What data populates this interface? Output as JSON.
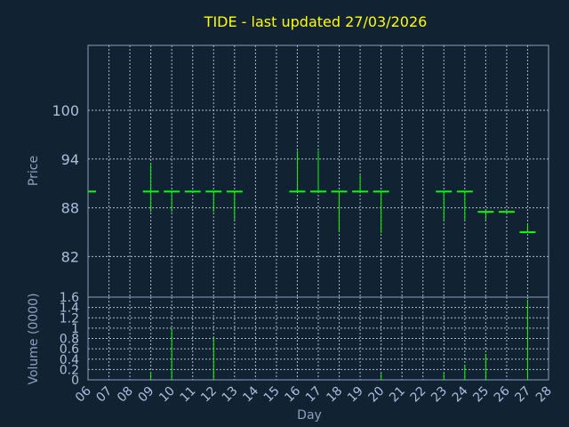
{
  "colors": {
    "background": "#112233",
    "title": "#ffff00",
    "axis_text": "#a9bfdc",
    "axis_label": "#8aa0bf",
    "grid": "#c9d3df",
    "frame": "#8aa0bf",
    "candle": "#00ff00"
  },
  "chart_data": [
    {
      "type": "ohlc",
      "title": "TIDE - last updated 27/03/2026",
      "xlabel": "",
      "ylabel": "Price",
      "ylim": [
        77,
        108
      ],
      "yticks": [
        "100",
        "94",
        "88",
        "82"
      ],
      "ytick_values": [
        100,
        94,
        88,
        82
      ],
      "grid": true,
      "x": [
        6,
        9,
        10,
        11,
        12,
        13,
        16,
        17,
        18,
        19,
        20,
        23,
        24,
        25,
        26,
        27
      ],
      "open": [
        90,
        90,
        90,
        90,
        90,
        90,
        90,
        90,
        90,
        90,
        90,
        90,
        90,
        87.5,
        87.5,
        85
      ],
      "high": [
        90,
        93.5,
        90,
        90,
        90,
        90,
        95,
        95,
        90,
        92,
        90,
        90,
        90,
        87.5,
        87.5,
        86
      ],
      "low": [
        90,
        87.5,
        87.5,
        90,
        87.5,
        86.5,
        90,
        90,
        85,
        90,
        84.9,
        86.5,
        86.5,
        86.5,
        87.5,
        85
      ],
      "close": [
        90,
        90,
        90,
        90,
        90,
        90,
        90,
        90,
        90,
        90,
        90,
        90,
        90,
        87.5,
        87.5,
        85
      ]
    },
    {
      "type": "bar",
      "title": "",
      "xlabel": "Day",
      "ylabel": "Volume (0000)",
      "ylim": [
        0,
        1.6
      ],
      "yticks": [
        "1.6",
        "1.4",
        "1.2",
        "1",
        "0.8",
        "0.6",
        "0.4",
        "0.2",
        "0"
      ],
      "ytick_values": [
        1.6,
        1.4,
        1.2,
        1.0,
        0.8,
        0.6,
        0.4,
        0.2,
        0
      ],
      "grid": true,
      "x": [
        6,
        9,
        10,
        11,
        12,
        13,
        16,
        17,
        18,
        19,
        20,
        23,
        24,
        25,
        26,
        27
      ],
      "values": [
        0,
        0.15,
        1.0,
        0,
        0.8,
        0,
        0,
        0,
        0,
        0,
        0.12,
        0.12,
        0.28,
        0.5,
        0,
        1.55
      ],
      "xticks": [
        "06",
        "07",
        "08",
        "09",
        "10",
        "11",
        "12",
        "13",
        "14",
        "15",
        "16",
        "17",
        "18",
        "19",
        "20",
        "21",
        "22",
        "23",
        "24",
        "25",
        "26",
        "27",
        "28"
      ],
      "xtick_values": [
        6,
        7,
        8,
        9,
        10,
        11,
        12,
        13,
        14,
        15,
        16,
        17,
        18,
        19,
        20,
        21,
        22,
        23,
        24,
        25,
        26,
        27,
        28
      ]
    }
  ]
}
